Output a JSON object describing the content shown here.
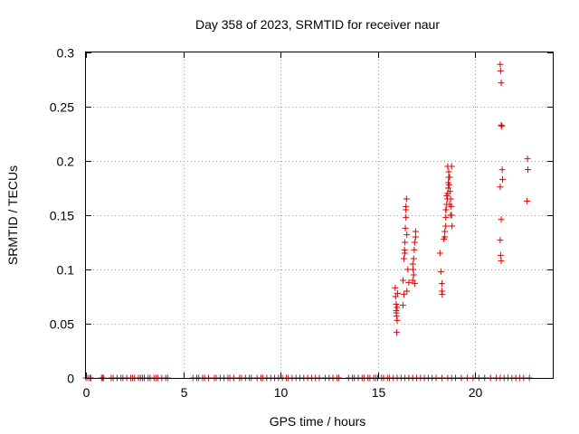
{
  "chart_data": {
    "type": "scatter",
    "title": "Day 358 of 2023, SRMTID for receiver naur",
    "xlabel": "GPS time / hours",
    "ylabel": "SRMTID / TECUs",
    "xlim": [
      0,
      24
    ],
    "ylim": [
      0,
      0.3
    ],
    "xticks": [
      0,
      5,
      10,
      15,
      20
    ],
    "xtick_labels": [
      "0",
      "5",
      "10",
      "15",
      "20"
    ],
    "yticks": [
      0,
      0.05,
      0.1,
      0.15,
      0.2,
      0.25,
      0.3
    ],
    "ytick_labels": [
      "0",
      "0.05",
      "0.1",
      "0.15",
      "0.2",
      "0.25",
      "0.3"
    ],
    "grid": true,
    "marker": "+",
    "colors": {
      "series": "#e00000",
      "grid": "#a0a0a0",
      "axis": "#000000"
    },
    "series": [
      {
        "name": "SRMTID",
        "points": [
          [
            0.0,
            0
          ],
          [
            0.1,
            0
          ],
          [
            0.2,
            0
          ],
          [
            0.25,
            0
          ],
          [
            0.8,
            0
          ],
          [
            0.85,
            0
          ],
          [
            0.9,
            0
          ],
          [
            1.3,
            0
          ],
          [
            1.4,
            0
          ],
          [
            1.6,
            0
          ],
          [
            1.8,
            0
          ],
          [
            1.9,
            0
          ],
          [
            2.1,
            0
          ],
          [
            2.3,
            0
          ],
          [
            2.4,
            0
          ],
          [
            2.5,
            0
          ],
          [
            2.7,
            0
          ],
          [
            2.8,
            0
          ],
          [
            2.9,
            0
          ],
          [
            3.0,
            0
          ],
          [
            3.2,
            0
          ],
          [
            3.3,
            0
          ],
          [
            3.5,
            0
          ],
          [
            3.6,
            0
          ],
          [
            3.7,
            0
          ],
          [
            3.9,
            0
          ],
          [
            4.1,
            0
          ],
          [
            4.2,
            0
          ],
          [
            5.5,
            0
          ],
          [
            5.7,
            0
          ],
          [
            5.8,
            0
          ],
          [
            6.0,
            0
          ],
          [
            6.1,
            0
          ],
          [
            6.3,
            0
          ],
          [
            6.6,
            0
          ],
          [
            6.7,
            0
          ],
          [
            6.9,
            0
          ],
          [
            7.1,
            0
          ],
          [
            7.3,
            0
          ],
          [
            7.4,
            0
          ],
          [
            7.6,
            0
          ],
          [
            7.9,
            0
          ],
          [
            8.0,
            0
          ],
          [
            8.2,
            0
          ],
          [
            8.4,
            0
          ],
          [
            8.5,
            0
          ],
          [
            8.8,
            0
          ],
          [
            9.0,
            0
          ],
          [
            9.1,
            0
          ],
          [
            9.3,
            0
          ],
          [
            9.5,
            0
          ],
          [
            9.7,
            0
          ],
          [
            9.9,
            0
          ],
          [
            10.1,
            0
          ],
          [
            10.3,
            0
          ],
          [
            10.4,
            0
          ],
          [
            10.6,
            0
          ],
          [
            10.8,
            0
          ],
          [
            11.0,
            0
          ],
          [
            11.2,
            0
          ],
          [
            11.4,
            0
          ],
          [
            11.6,
            0
          ],
          [
            11.8,
            0
          ],
          [
            12.0,
            0
          ],
          [
            12.3,
            0
          ],
          [
            12.5,
            0
          ],
          [
            12.7,
            0
          ],
          [
            12.9,
            0
          ],
          [
            13.0,
            0
          ],
          [
            13.5,
            0
          ],
          [
            13.7,
            0
          ],
          [
            13.8,
            0
          ],
          [
            14.0,
            0
          ],
          [
            14.2,
            0
          ],
          [
            14.3,
            0
          ],
          [
            14.5,
            0
          ],
          [
            14.6,
            0
          ],
          [
            14.8,
            0
          ],
          [
            14.9,
            0
          ],
          [
            15.0,
            0
          ],
          [
            15.2,
            0
          ],
          [
            15.3,
            0
          ],
          [
            15.5,
            0
          ],
          [
            15.6,
            0
          ],
          [
            15.8,
            0
          ],
          [
            16.0,
            0
          ],
          [
            16.2,
            0
          ],
          [
            16.4,
            0
          ],
          [
            16.6,
            0
          ],
          [
            16.8,
            0
          ],
          [
            17.0,
            0
          ],
          [
            17.2,
            0
          ],
          [
            17.4,
            0
          ],
          [
            17.6,
            0
          ],
          [
            17.8,
            0
          ],
          [
            18.0,
            0
          ],
          [
            18.3,
            0
          ],
          [
            18.6,
            0
          ],
          [
            18.8,
            0
          ],
          [
            19.0,
            0
          ],
          [
            19.3,
            0
          ],
          [
            19.6,
            0
          ],
          [
            19.9,
            0
          ],
          [
            20.2,
            0
          ],
          [
            20.5,
            0
          ],
          [
            20.8,
            0
          ],
          [
            21.1,
            0
          ],
          [
            21.3,
            0
          ],
          [
            21.5,
            0
          ],
          [
            21.7,
            0
          ],
          [
            21.9,
            0
          ],
          [
            22.1,
            0
          ],
          [
            22.3,
            0
          ],
          [
            22.5,
            0
          ],
          [
            22.8,
            0
          ],
          [
            15.9,
            0.083
          ],
          [
            15.92,
            0.075
          ],
          [
            15.95,
            0.068
          ],
          [
            15.95,
            0.062
          ],
          [
            15.97,
            0.057
          ],
          [
            16.0,
            0.053
          ],
          [
            16.0,
            0.065
          ],
          [
            15.98,
            0.042
          ],
          [
            16.02,
            0.078
          ],
          [
            15.96,
            0.06
          ],
          [
            16.3,
            0.09
          ],
          [
            16.35,
            0.11
          ],
          [
            16.38,
            0.118
          ],
          [
            16.4,
            0.125
          ],
          [
            16.42,
            0.138
          ],
          [
            16.45,
            0.148
          ],
          [
            16.45,
            0.155
          ],
          [
            16.48,
            0.165
          ],
          [
            16.5,
            0.132
          ],
          [
            16.4,
            0.115
          ],
          [
            16.55,
            0.1
          ],
          [
            16.5,
            0.08
          ],
          [
            16.35,
            0.077
          ],
          [
            16.3,
            0.067
          ],
          [
            16.6,
            0.088
          ],
          [
            16.45,
            0.158
          ],
          [
            16.8,
            0.09
          ],
          [
            16.82,
            0.1
          ],
          [
            16.85,
            0.11
          ],
          [
            16.88,
            0.118
          ],
          [
            16.9,
            0.125
          ],
          [
            16.95,
            0.135
          ],
          [
            16.85,
            0.095
          ],
          [
            16.8,
            0.105
          ],
          [
            16.9,
            0.087
          ],
          [
            16.95,
            0.13
          ],
          [
            18.2,
            0.115
          ],
          [
            18.25,
            0.098
          ],
          [
            18.3,
            0.087
          ],
          [
            18.3,
            0.08
          ],
          [
            18.32,
            0.077
          ],
          [
            18.4,
            0.128
          ],
          [
            18.45,
            0.135
          ],
          [
            18.5,
            0.14
          ],
          [
            18.5,
            0.148
          ],
          [
            18.52,
            0.155
          ],
          [
            18.55,
            0.16
          ],
          [
            18.58,
            0.165
          ],
          [
            18.6,
            0.17
          ],
          [
            18.62,
            0.175
          ],
          [
            18.63,
            0.18
          ],
          [
            18.65,
            0.185
          ],
          [
            18.6,
            0.195
          ],
          [
            18.65,
            0.19
          ],
          [
            18.7,
            0.185
          ],
          [
            18.72,
            0.172
          ],
          [
            18.75,
            0.165
          ],
          [
            18.78,
            0.158
          ],
          [
            18.8,
            0.15
          ],
          [
            18.82,
            0.14
          ],
          [
            18.8,
            0.195
          ],
          [
            18.7,
            0.16
          ],
          [
            18.55,
            0.168
          ],
          [
            18.5,
            0.155
          ],
          [
            18.45,
            0.13
          ],
          [
            18.68,
            0.178
          ],
          [
            18.74,
            0.15
          ],
          [
            21.3,
            0.289
          ],
          [
            21.32,
            0.283
          ],
          [
            21.35,
            0.272
          ],
          [
            21.35,
            0.233
          ],
          [
            21.38,
            0.232
          ],
          [
            21.4,
            0.192
          ],
          [
            21.42,
            0.183
          ],
          [
            21.3,
            0.176
          ],
          [
            21.35,
            0.146
          ],
          [
            21.3,
            0.127
          ],
          [
            21.32,
            0.113
          ],
          [
            21.35,
            0.108
          ],
          [
            22.7,
            0.202
          ],
          [
            22.72,
            0.192
          ],
          [
            22.68,
            0.163
          ]
        ]
      }
    ]
  }
}
